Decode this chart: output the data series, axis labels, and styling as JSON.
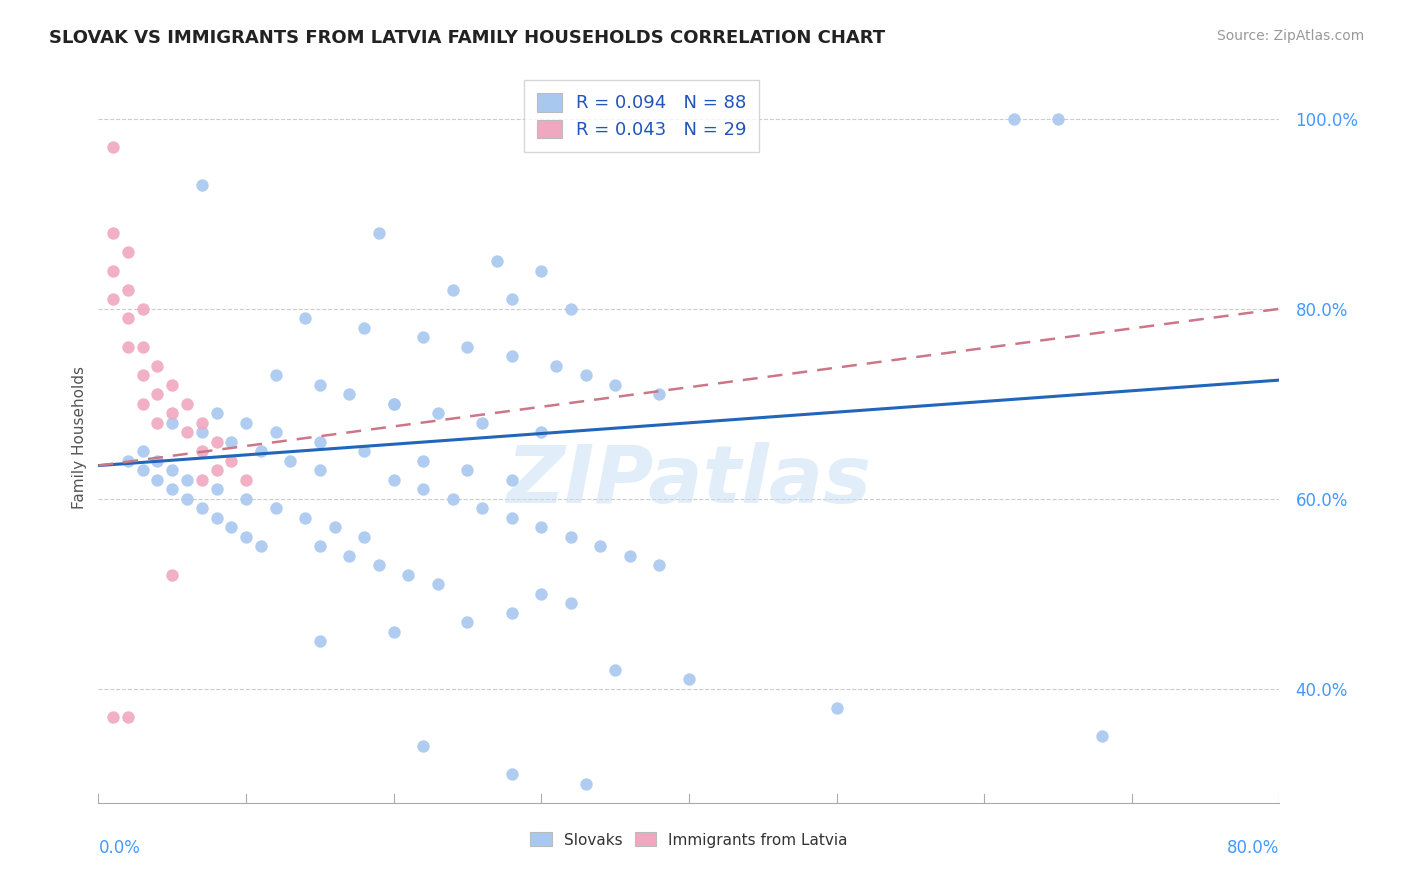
{
  "title": "SLOVAK VS IMMIGRANTS FROM LATVIA FAMILY HOUSEHOLDS CORRELATION CHART",
  "source": "Source: ZipAtlas.com",
  "ylabel": "Family Households",
  "legend_label1": "R = 0.094   N = 88",
  "legend_label2": "R = 0.043   N = 29",
  "legend_name1": "Slovaks",
  "legend_name2": "Immigrants from Latvia",
  "color_blue": "#a8c8f0",
  "color_pink": "#f0a8c0",
  "trendline_blue_color": "#2266bb",
  "trendline_pink_color": "#cc7788",
  "watermark": "ZIPatlas",
  "xlim": [
    0.0,
    0.8
  ],
  "ylim": [
    0.28,
    1.05
  ],
  "ytick_vals": [
    0.4,
    0.6,
    0.8,
    1.0
  ],
  "ytick_labels": [
    "40.0%",
    "60.0%",
    "80.0%",
    "100.0%"
  ],
  "blue_trend_start_y": 0.635,
  "blue_trend_end_y": 0.725,
  "pink_trend_start_y": 0.635,
  "pink_trend_end_y": 0.8,
  "blue_x": [
    0.62,
    0.65,
    0.07,
    0.19,
    0.27,
    0.3,
    0.24,
    0.28,
    0.32,
    0.14,
    0.18,
    0.22,
    0.25,
    0.28,
    0.31,
    0.33,
    0.35,
    0.38,
    0.2,
    0.23,
    0.26,
    0.3,
    0.12,
    0.15,
    0.17,
    0.2,
    0.08,
    0.1,
    0.12,
    0.15,
    0.18,
    0.22,
    0.25,
    0.28,
    0.05,
    0.07,
    0.09,
    0.11,
    0.13,
    0.15,
    0.03,
    0.04,
    0.05,
    0.06,
    0.08,
    0.1,
    0.12,
    0.14,
    0.16,
    0.18,
    0.02,
    0.03,
    0.04,
    0.05,
    0.06,
    0.07,
    0.08,
    0.09,
    0.1,
    0.11,
    0.2,
    0.22,
    0.24,
    0.26,
    0.28,
    0.3,
    0.32,
    0.34,
    0.36,
    0.38,
    0.15,
    0.17,
    0.19,
    0.21,
    0.23,
    0.5,
    0.32,
    0.28,
    0.35,
    0.4,
    0.68,
    0.25,
    0.2,
    0.15,
    0.3,
    0.28,
    0.33,
    0.22
  ],
  "blue_y": [
    1.0,
    1.0,
    0.93,
    0.88,
    0.85,
    0.84,
    0.82,
    0.81,
    0.8,
    0.79,
    0.78,
    0.77,
    0.76,
    0.75,
    0.74,
    0.73,
    0.72,
    0.71,
    0.7,
    0.69,
    0.68,
    0.67,
    0.73,
    0.72,
    0.71,
    0.7,
    0.69,
    0.68,
    0.67,
    0.66,
    0.65,
    0.64,
    0.63,
    0.62,
    0.68,
    0.67,
    0.66,
    0.65,
    0.64,
    0.63,
    0.65,
    0.64,
    0.63,
    0.62,
    0.61,
    0.6,
    0.59,
    0.58,
    0.57,
    0.56,
    0.64,
    0.63,
    0.62,
    0.61,
    0.6,
    0.59,
    0.58,
    0.57,
    0.56,
    0.55,
    0.62,
    0.61,
    0.6,
    0.59,
    0.58,
    0.57,
    0.56,
    0.55,
    0.54,
    0.53,
    0.55,
    0.54,
    0.53,
    0.52,
    0.51,
    0.38,
    0.49,
    0.48,
    0.42,
    0.41,
    0.35,
    0.47,
    0.46,
    0.45,
    0.5,
    0.31,
    0.3,
    0.34
  ],
  "pink_x": [
    0.01,
    0.01,
    0.01,
    0.01,
    0.01,
    0.02,
    0.02,
    0.02,
    0.02,
    0.02,
    0.03,
    0.03,
    0.03,
    0.03,
    0.04,
    0.04,
    0.04,
    0.05,
    0.05,
    0.05,
    0.06,
    0.06,
    0.07,
    0.07,
    0.07,
    0.08,
    0.08,
    0.09,
    0.1
  ],
  "pink_y": [
    0.97,
    0.88,
    0.84,
    0.81,
    0.37,
    0.86,
    0.82,
    0.79,
    0.76,
    0.37,
    0.8,
    0.76,
    0.73,
    0.7,
    0.74,
    0.71,
    0.68,
    0.72,
    0.69,
    0.52,
    0.7,
    0.67,
    0.68,
    0.65,
    0.62,
    0.66,
    0.63,
    0.64,
    0.62
  ]
}
